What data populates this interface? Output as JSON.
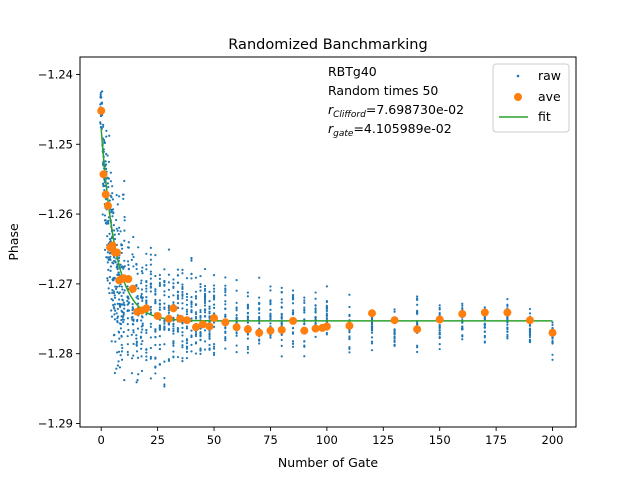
{
  "chart_data": {
    "type": "scatter",
    "title": "Randomized Banchmarking",
    "xlabel": "Number of Gate",
    "ylabel": "Phase",
    "xlim": [
      -9.4,
      210.4
    ],
    "ylim": [
      -1.2905,
      -1.2375
    ],
    "xticks": [
      0,
      25,
      50,
      75,
      100,
      125,
      150,
      175,
      200
    ],
    "xtick_labels": [
      "0",
      "25",
      "50",
      "75",
      "100",
      "125",
      "150",
      "175",
      "200"
    ],
    "yticks": [
      -1.24,
      -1.25,
      -1.26,
      -1.27,
      -1.28,
      -1.29
    ],
    "ytick_labels": [
      "−1.24",
      "−1.25",
      "−1.26",
      "−1.27",
      "−1.28",
      "−1.29"
    ],
    "grid": false,
    "legend_position": "top-right",
    "annotation": {
      "line1": "RBTg40",
      "line2": "Random times 50",
      "r_clifford_sub": "Clifford",
      "r_clifford_value": "=7.698730e-02",
      "r_gate_sub": "gate",
      "r_gate_value": "=4.105989e-02"
    },
    "colors": {
      "raw": "#1f77b4",
      "ave": "#ff7f0e",
      "fit": "#2ca02c"
    },
    "series": [
      {
        "name": "raw",
        "style": "points",
        "x": [
          0,
          1,
          2,
          3,
          4,
          5,
          6,
          7,
          8,
          9,
          10,
          12,
          14,
          16,
          18,
          20,
          22,
          24,
          26,
          28,
          30,
          32,
          34,
          36,
          38,
          40,
          42,
          44,
          46,
          48,
          50,
          55,
          60,
          65,
          70,
          75,
          80,
          85,
          90,
          95,
          100,
          110,
          120,
          130,
          140,
          150,
          160,
          170,
          180,
          190,
          200
        ],
        "spread": [
          [
            -1.2401,
            -1.2505
          ],
          [
            -1.2415,
            -1.2625
          ],
          [
            -1.2435,
            -1.2705
          ],
          [
            -1.2455,
            -1.2755
          ],
          [
            -1.2475,
            -1.2795
          ],
          [
            -1.2505,
            -1.2825
          ],
          [
            -1.2525,
            -1.2845
          ],
          [
            -1.2535,
            -1.2855
          ],
          [
            -1.2555,
            -1.2865
          ],
          [
            -1.2555,
            -1.2875
          ],
          [
            -1.2515,
            -1.2865
          ],
          [
            -1.2585,
            -1.2875
          ],
          [
            -1.2585,
            -1.2875
          ],
          [
            -1.2605,
            -1.2882
          ],
          [
            -1.2615,
            -1.2875
          ],
          [
            -1.2625,
            -1.2875
          ],
          [
            -1.2565,
            -1.2865
          ],
          [
            -1.2625,
            -1.2865
          ],
          [
            -1.2635,
            -1.2865
          ],
          [
            -1.2645,
            -1.2865
          ],
          [
            -1.2635,
            -1.2865
          ],
          [
            -1.2655,
            -1.2855
          ],
          [
            -1.2635,
            -1.2845
          ],
          [
            -1.2645,
            -1.2865
          ],
          [
            -1.2665,
            -1.2855
          ],
          [
            -1.2635,
            -1.2855
          ],
          [
            -1.2665,
            -1.2845
          ],
          [
            -1.2675,
            -1.2845
          ],
          [
            -1.2655,
            -1.2835
          ],
          [
            -1.2665,
            -1.2835
          ],
          [
            -1.2645,
            -1.2845
          ],
          [
            -1.2665,
            -1.2825
          ],
          [
            -1.2665,
            -1.2825
          ],
          [
            -1.2685,
            -1.2825
          ],
          [
            -1.2665,
            -1.2825
          ],
          [
            -1.2685,
            -1.2815
          ],
          [
            -1.2675,
            -1.2815
          ],
          [
            -1.2685,
            -1.2815
          ],
          [
            -1.2705,
            -1.2815
          ],
          [
            -1.2695,
            -1.2805
          ],
          [
            -1.2695,
            -1.2805
          ],
          [
            -1.2705,
            -1.2815
          ],
          [
            -1.2715,
            -1.2805
          ],
          [
            -1.2715,
            -1.2805
          ],
          [
            -1.2705,
            -1.2805
          ],
          [
            -1.2715,
            -1.2805
          ],
          [
            -1.2715,
            -1.2795
          ],
          [
            -1.2715,
            -1.2795
          ],
          [
            -1.2715,
            -1.2795
          ],
          [
            -1.2725,
            -1.2795
          ],
          [
            -1.2735,
            -1.2815
          ]
        ]
      },
      {
        "name": "ave",
        "style": "markers",
        "x": [
          0,
          1,
          2,
          3,
          4,
          5,
          6,
          7,
          8,
          9,
          10,
          12,
          14,
          16,
          18,
          20,
          25,
          30,
          32,
          35,
          38,
          42,
          45,
          48,
          50,
          55,
          60,
          65,
          70,
          75,
          80,
          85,
          90,
          95,
          98,
          100,
          110,
          120,
          130,
          140,
          150,
          160,
          170,
          180,
          190,
          200
        ],
        "values": [
          -1.2452,
          -1.2543,
          -1.2572,
          -1.2588,
          -1.2648,
          -1.2645,
          -1.2655,
          -1.2655,
          -1.2695,
          -1.2693,
          -1.2692,
          -1.2693,
          -1.2707,
          -1.274,
          -1.2738,
          -1.2735,
          -1.2746,
          -1.275,
          -1.2735,
          -1.275,
          -1.2752,
          -1.2762,
          -1.2758,
          -1.2761,
          -1.2749,
          -1.2755,
          -1.2762,
          -1.2765,
          -1.277,
          -1.2767,
          -1.2766,
          -1.2753,
          -1.2767,
          -1.2764,
          -1.2763,
          -1.2761,
          -1.276,
          -1.2742,
          -1.2752,
          -1.2765,
          -1.2751,
          -1.2743,
          -1.2741,
          -1.2741,
          -1.2752,
          -1.277
        ]
      },
      {
        "name": "fit",
        "style": "line",
        "model": "A*p^x + B",
        "A": 0.0275,
        "p": 0.8553,
        "B": -1.2753
      }
    ]
  }
}
